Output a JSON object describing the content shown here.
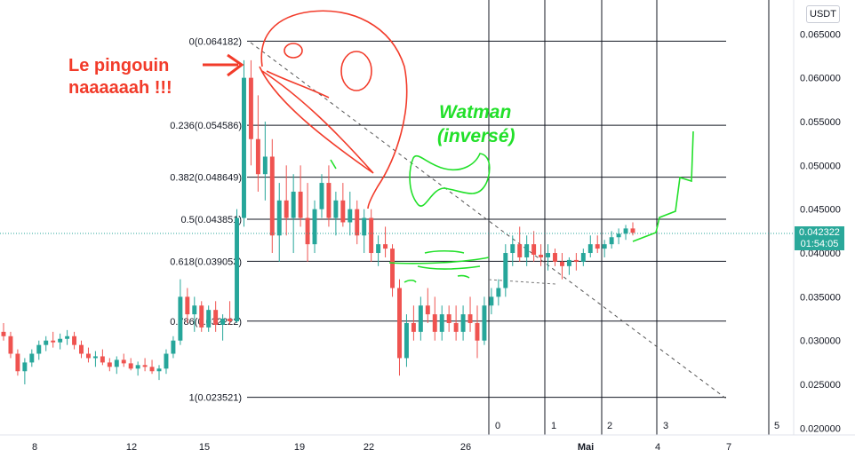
{
  "currency": "USDT",
  "last_price": {
    "value": "0.042322",
    "countdown": "01:54:05",
    "color": "#26a69a"
  },
  "annotations": {
    "red_text": [
      "Le pingouin",
      "naaaaaah !!!"
    ],
    "green_text": [
      "Watman",
      "(inversé)"
    ]
  },
  "colors": {
    "up": "#26a69a",
    "down": "#ef5350",
    "annotation_red": "#f23b2a",
    "annotation_green": "#22e02a"
  },
  "chart_data": {
    "type": "candlestick",
    "y_axis": {
      "position": "right",
      "range": [
        0.0195,
        0.068
      ],
      "ticks": [
        "0.065000",
        "0.060000",
        "0.055000",
        "0.050000",
        "0.045000",
        "0.040000",
        "0.035000",
        "0.030000",
        "0.025000",
        "0.020000"
      ]
    },
    "x_axis": {
      "ticks": [
        "8",
        "12",
        "15",
        "19",
        "22",
        "26",
        "Mai",
        "4",
        "7"
      ]
    },
    "fibonacci": [
      {
        "label": "0(0.064182)",
        "value": 0.064182
      },
      {
        "label": "0.236(0.054586)",
        "value": 0.054586
      },
      {
        "label": "0.382(0.048649)",
        "value": 0.048649
      },
      {
        "label": "0.5(0.043851)",
        "value": 0.043851
      },
      {
        "label": "0.618(0.039053)",
        "value": 0.039053
      },
      {
        "label": "0.786(0.032222)",
        "value": 0.032222
      },
      {
        "label": "1(0.023521)",
        "value": 0.023521
      }
    ],
    "grid_numbers": [
      "0",
      "1",
      "2",
      "3",
      "5"
    ],
    "candles": [
      [
        0.031,
        0.032,
        0.03,
        0.0305
      ],
      [
        0.0305,
        0.031,
        0.028,
        0.0285
      ],
      [
        0.0285,
        0.029,
        0.026,
        0.0265
      ],
      [
        0.0265,
        0.028,
        0.025,
        0.0275
      ],
      [
        0.0275,
        0.029,
        0.027,
        0.0285
      ],
      [
        0.0285,
        0.03,
        0.0278,
        0.0295
      ],
      [
        0.0295,
        0.0305,
        0.0288,
        0.03
      ],
      [
        0.03,
        0.031,
        0.0292,
        0.0298
      ],
      [
        0.0298,
        0.0308,
        0.029,
        0.0302
      ],
      [
        0.0302,
        0.0312,
        0.0295,
        0.0305
      ],
      [
        0.0305,
        0.031,
        0.029,
        0.0295
      ],
      [
        0.0295,
        0.03,
        0.028,
        0.0285
      ],
      [
        0.0285,
        0.0292,
        0.0275,
        0.028
      ],
      [
        0.028,
        0.0288,
        0.027,
        0.0282
      ],
      [
        0.0282,
        0.029,
        0.0272,
        0.0275
      ],
      [
        0.0275,
        0.028,
        0.0265,
        0.027
      ],
      [
        0.027,
        0.0282,
        0.0262,
        0.0278
      ],
      [
        0.0278,
        0.0285,
        0.027,
        0.0274
      ],
      [
        0.0274,
        0.028,
        0.0266,
        0.0268
      ],
      [
        0.0268,
        0.0276,
        0.026,
        0.0272
      ],
      [
        0.0272,
        0.028,
        0.0265,
        0.027
      ],
      [
        0.027,
        0.0278,
        0.0262,
        0.0265
      ],
      [
        0.0265,
        0.0272,
        0.0255,
        0.0268
      ],
      [
        0.0268,
        0.029,
        0.0262,
        0.0285
      ],
      [
        0.0285,
        0.0305,
        0.028,
        0.03
      ],
      [
        0.03,
        0.037,
        0.0295,
        0.035
      ],
      [
        0.035,
        0.036,
        0.032,
        0.033
      ],
      [
        0.033,
        0.035,
        0.031,
        0.034
      ],
      [
        0.034,
        0.0345,
        0.031,
        0.0315
      ],
      [
        0.0315,
        0.034,
        0.031,
        0.0335
      ],
      [
        0.0335,
        0.0345,
        0.031,
        0.0318
      ],
      [
        0.0318,
        0.033,
        0.03,
        0.0325
      ],
      [
        0.0325,
        0.0345,
        0.0318,
        0.0322
      ],
      [
        0.0322,
        0.045,
        0.032,
        0.044
      ],
      [
        0.044,
        0.062,
        0.043,
        0.06
      ],
      [
        0.06,
        0.062,
        0.05,
        0.053
      ],
      [
        0.053,
        0.058,
        0.047,
        0.049
      ],
      [
        0.049,
        0.055,
        0.046,
        0.051
      ],
      [
        0.051,
        0.053,
        0.04,
        0.042
      ],
      [
        0.042,
        0.048,
        0.039,
        0.046
      ],
      [
        0.046,
        0.05,
        0.042,
        0.044
      ],
      [
        0.044,
        0.049,
        0.04,
        0.047
      ],
      [
        0.047,
        0.05,
        0.043,
        0.044
      ],
      [
        0.044,
        0.048,
        0.039,
        0.041
      ],
      [
        0.041,
        0.046,
        0.04,
        0.045
      ],
      [
        0.045,
        0.049,
        0.044,
        0.048
      ],
      [
        0.048,
        0.05,
        0.043,
        0.044
      ],
      [
        0.044,
        0.047,
        0.042,
        0.046
      ],
      [
        0.046,
        0.048,
        0.043,
        0.0435
      ],
      [
        0.0435,
        0.047,
        0.042,
        0.045
      ],
      [
        0.045,
        0.046,
        0.041,
        0.042
      ],
      [
        0.042,
        0.045,
        0.04,
        0.044
      ],
      [
        0.044,
        0.045,
        0.039,
        0.04
      ],
      [
        0.04,
        0.042,
        0.0385,
        0.041
      ],
      [
        0.041,
        0.043,
        0.0395,
        0.0405
      ],
      [
        0.0405,
        0.041,
        0.035,
        0.036
      ],
      [
        0.036,
        0.037,
        0.026,
        0.028
      ],
      [
        0.028,
        0.033,
        0.027,
        0.032
      ],
      [
        0.032,
        0.034,
        0.03,
        0.031
      ],
      [
        0.031,
        0.035,
        0.03,
        0.034
      ],
      [
        0.034,
        0.036,
        0.032,
        0.033
      ],
      [
        0.033,
        0.035,
        0.03,
        0.031
      ],
      [
        0.031,
        0.034,
        0.03,
        0.033
      ],
      [
        0.033,
        0.034,
        0.031,
        0.032
      ],
      [
        0.032,
        0.034,
        0.03,
        0.031
      ],
      [
        0.031,
        0.034,
        0.03,
        0.033
      ],
      [
        0.033,
        0.035,
        0.031,
        0.032
      ],
      [
        0.032,
        0.034,
        0.028,
        0.03
      ],
      [
        0.03,
        0.035,
        0.0295,
        0.034
      ],
      [
        0.034,
        0.036,
        0.033,
        0.035
      ],
      [
        0.035,
        0.037,
        0.034,
        0.036
      ],
      [
        0.036,
        0.041,
        0.035,
        0.04
      ],
      [
        0.04,
        0.042,
        0.0385,
        0.041
      ],
      [
        0.041,
        0.043,
        0.039,
        0.0395
      ],
      [
        0.0395,
        0.042,
        0.0385,
        0.041
      ],
      [
        0.041,
        0.0425,
        0.039,
        0.0398
      ],
      [
        0.0398,
        0.041,
        0.0385,
        0.0395
      ],
      [
        0.0395,
        0.041,
        0.038,
        0.04
      ],
      [
        0.04,
        0.0405,
        0.0385,
        0.039
      ],
      [
        0.039,
        0.04,
        0.037,
        0.0385
      ],
      [
        0.0385,
        0.0395,
        0.0375,
        0.0392
      ],
      [
        0.0392,
        0.04,
        0.038,
        0.039
      ],
      [
        0.039,
        0.0405,
        0.0385,
        0.04
      ],
      [
        0.04,
        0.042,
        0.0395,
        0.041
      ],
      [
        0.041,
        0.042,
        0.04,
        0.0405
      ],
      [
        0.0405,
        0.0415,
        0.0395,
        0.041
      ],
      [
        0.041,
        0.0425,
        0.0405,
        0.0418
      ],
      [
        0.0418,
        0.0428,
        0.041,
        0.0422
      ],
      [
        0.0422,
        0.0432,
        0.0415,
        0.0428
      ],
      [
        0.0428,
        0.0435,
        0.042,
        0.0423
      ]
    ]
  }
}
